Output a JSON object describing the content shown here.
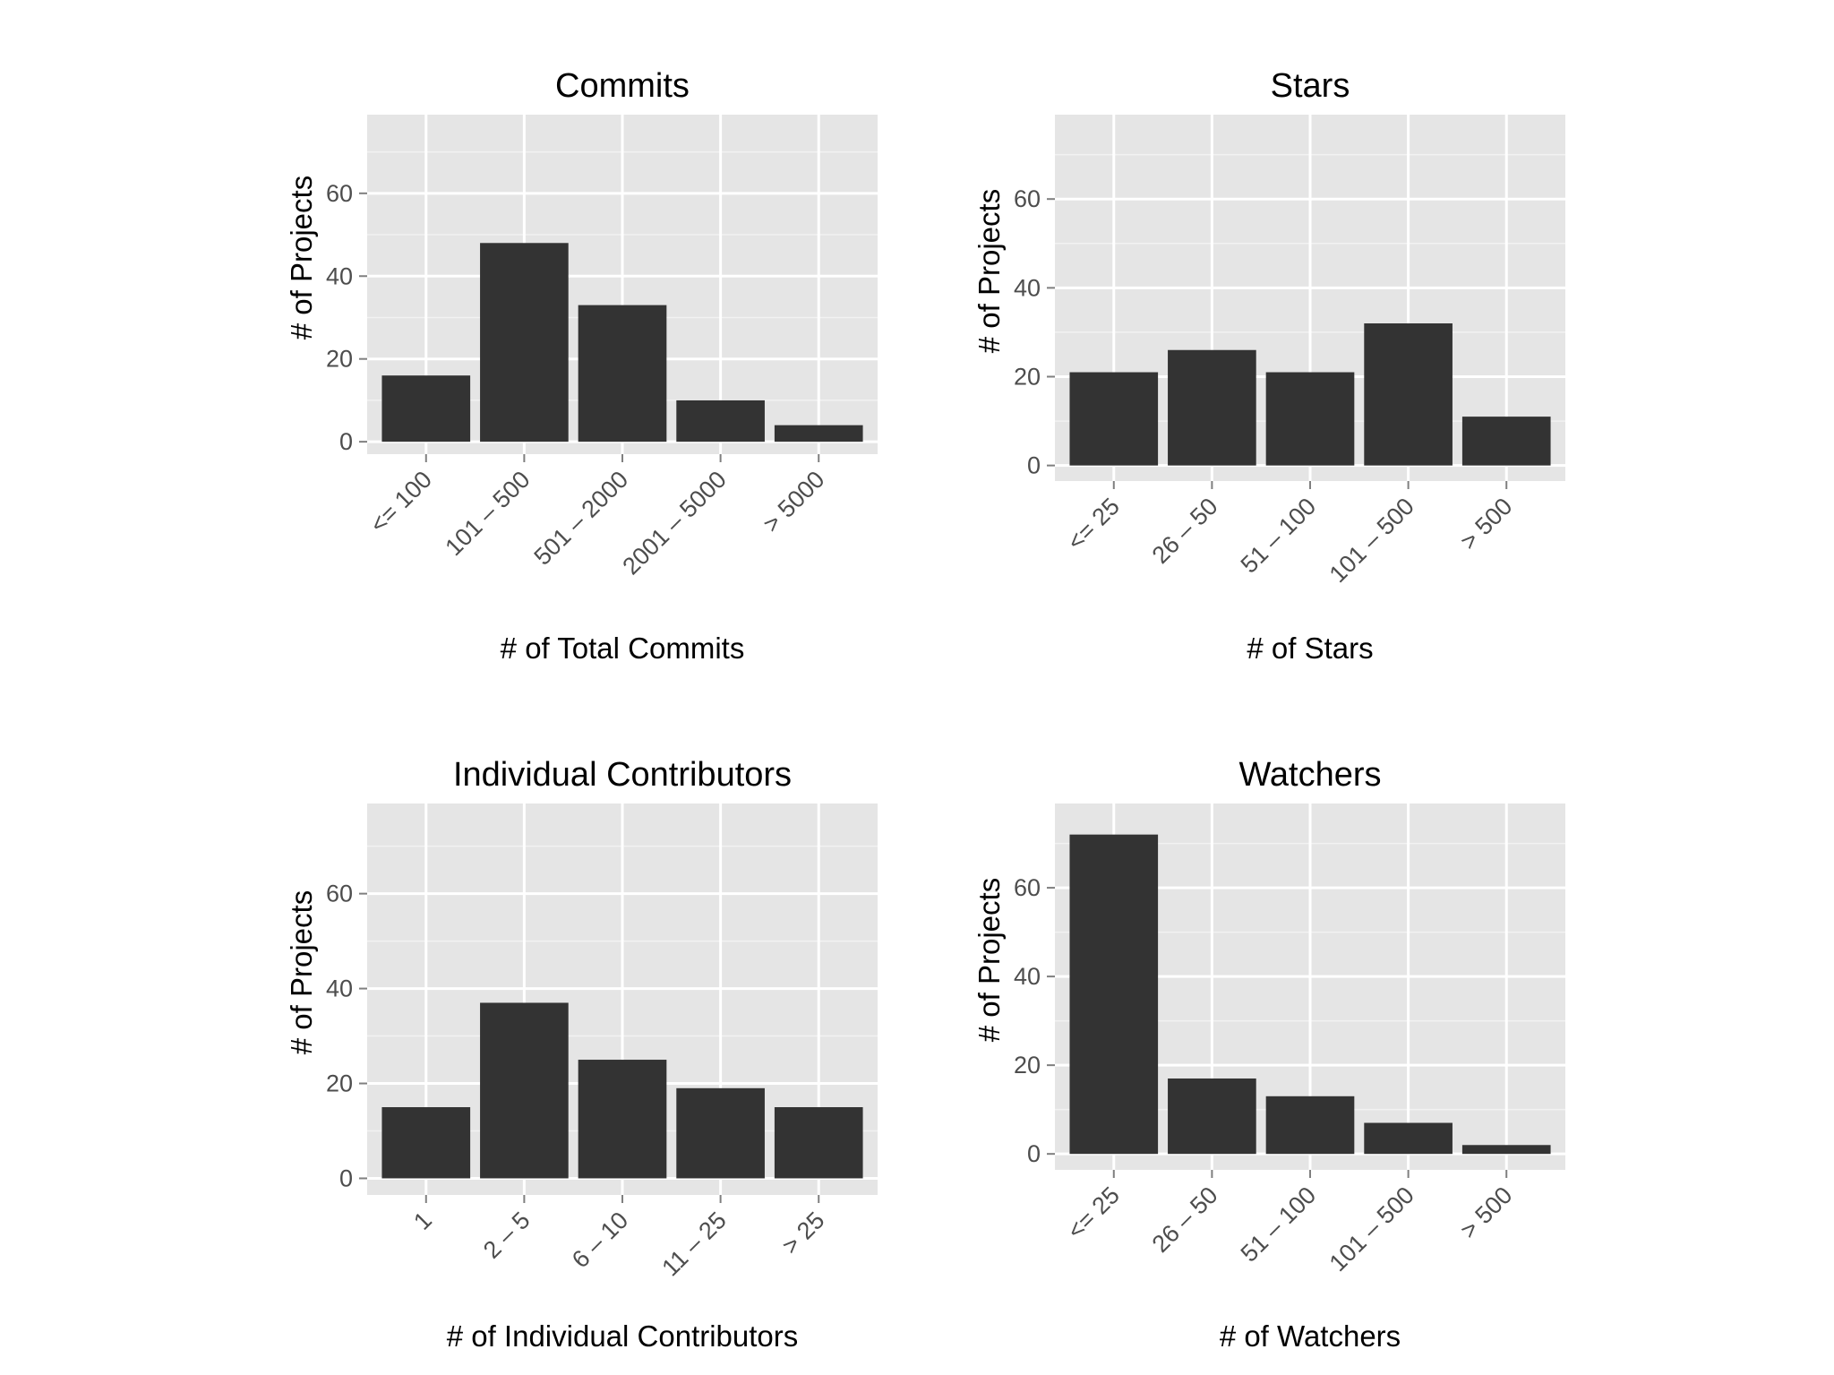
{
  "chart_data": [
    {
      "type": "bar",
      "title": "Commits",
      "xlabel": "# of Total Commits",
      "ylabel": "# of Projects",
      "categories": [
        "<= 100",
        "101 – 500",
        "501 – 2000",
        "2001 – 5000",
        "> 5000"
      ],
      "values": [
        16,
        48,
        33,
        10,
        4
      ],
      "ylim": [
        -3,
        79
      ],
      "yticks": [
        0,
        20,
        40,
        60
      ],
      "yticks_labels": [
        "0",
        "20",
        "40",
        "60"
      ],
      "grid": true,
      "legend": "none"
    },
    {
      "type": "bar",
      "title": "Stars",
      "xlabel": "# of Stars",
      "ylabel": "# of Projects",
      "categories": [
        "<= 25",
        "26 – 50",
        "51 – 100",
        "101 – 500",
        "> 500"
      ],
      "values": [
        21,
        26,
        21,
        32,
        11
      ],
      "ylim": [
        -3.5,
        79
      ],
      "yticks": [
        0,
        20,
        40,
        60
      ],
      "yticks_labels": [
        "0",
        "20",
        "40",
        "60"
      ],
      "grid": true,
      "legend": "none"
    },
    {
      "type": "bar",
      "title": "Individual Contributors",
      "xlabel": "# of Individual Contributors",
      "ylabel": "# of Projects",
      "categories": [
        "1",
        "2 – 5",
        "6 – 10",
        "11 – 25",
        "> 25"
      ],
      "values": [
        15,
        37,
        25,
        19,
        15
      ],
      "ylim": [
        -3.5,
        79
      ],
      "yticks": [
        0,
        20,
        40,
        60
      ],
      "yticks_labels": [
        "0",
        "20",
        "40",
        "60"
      ],
      "grid": true,
      "legend": "none"
    },
    {
      "type": "bar",
      "title": "Watchers",
      "xlabel": "# of Watchers",
      "ylabel": "# of Projects",
      "categories": [
        "<= 25",
        "26 – 50",
        "51 – 100",
        "101 – 500",
        "> 500"
      ],
      "values": [
        72,
        17,
        13,
        7,
        2
      ],
      "ylim": [
        -3.6,
        79
      ],
      "yticks": [
        0,
        20,
        40,
        60
      ],
      "yticks_labels": [
        "0",
        "20",
        "40",
        "60"
      ],
      "grid": true,
      "legend": "none"
    }
  ],
  "colors": {
    "panel_background": "#e5e5e5",
    "major_grid": "#ffffff",
    "minor_grid": "#f2f2f2",
    "bar_fill": "#333333",
    "tick_text": "#4d4d4d",
    "title_text": "#000000"
  }
}
